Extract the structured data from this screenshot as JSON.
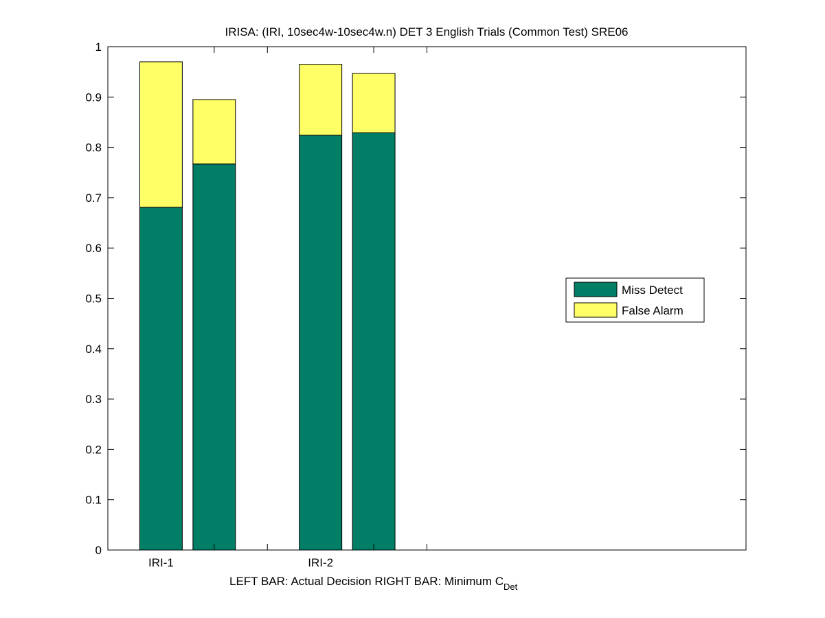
{
  "chart_data": {
    "type": "bar",
    "stacked": true,
    "title": "IRISA: (IRI, 10sec4w-10sec4w.n) DET 3 English Trials (Common Test) SRE06",
    "xlabel_main": "LEFT BAR: Actual Decision      RIGHT BAR: Minimum C",
    "xlabel_sub": "Det",
    "ylim": [
      0,
      1
    ],
    "yticks": [
      "0",
      "0.1",
      "0.2",
      "0.3",
      "0.4",
      "0.5",
      "0.6",
      "0.7",
      "0.8",
      "0.9",
      "1"
    ],
    "xlim": [
      0,
      12
    ],
    "xtick_values": [
      2,
      3,
      5,
      6
    ],
    "group_labels": [
      {
        "label": "IRI-1",
        "x": 2
      },
      {
        "label": "IRI-2",
        "x": 5
      }
    ],
    "bars": [
      {
        "system": "IRI-1",
        "kind": "Actual Decision",
        "x": 1,
        "miss_detect": 0.681,
        "false_alarm": 0.289
      },
      {
        "system": "IRI-1",
        "kind": "Minimum C_Det",
        "x": 2,
        "miss_detect": 0.767,
        "false_alarm": 0.128
      },
      {
        "system": "IRI-2",
        "kind": "Actual Decision",
        "x": 4,
        "miss_detect": 0.824,
        "false_alarm": 0.141
      },
      {
        "system": "IRI-2",
        "kind": "Minimum C_Det",
        "x": 5,
        "miss_detect": 0.829,
        "false_alarm": 0.118
      }
    ],
    "series": [
      {
        "name": "Miss Detect",
        "color": "#007f66"
      },
      {
        "name": "False Alarm",
        "color": "#ffff66"
      }
    ],
    "legend_position": "right",
    "grid": false
  }
}
